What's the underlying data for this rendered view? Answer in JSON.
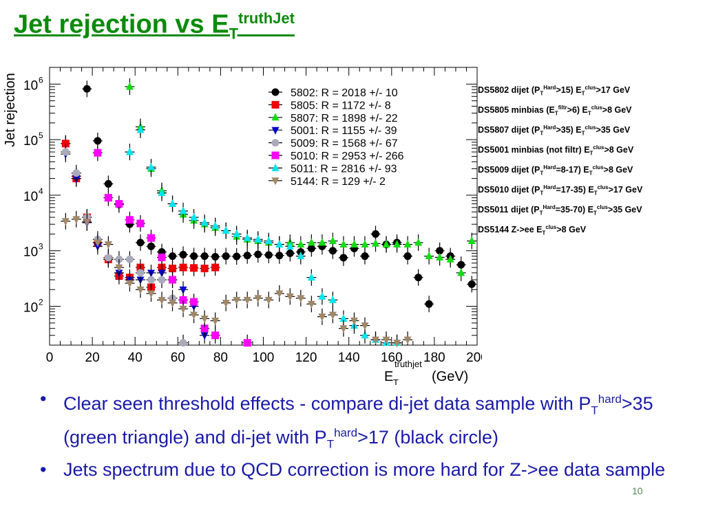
{
  "title": {
    "main": "Jet rejection vs E",
    "sub": "T",
    "sup": "truthJet"
  },
  "notes": [
    [
      "DS5802 dijet (P",
      {
        "sub": "T"
      },
      {
        "sup": "Hard"
      },
      ">15)  E",
      {
        "sub": "T"
      },
      {
        "sup": "clus"
      },
      ">17 GeV"
    ],
    [
      "DS5805 minbias (E",
      {
        "sub": "T"
      },
      {
        "sup": "filtr"
      },
      ">6) E",
      {
        "sub": "T"
      },
      {
        "sup": "clus"
      },
      ">8 GeV"
    ],
    [
      "DS5807 dijet (P",
      {
        "sub": "T"
      },
      {
        "sup": "Hard"
      },
      ">35)  E",
      {
        "sub": "T"
      },
      {
        "sup": "clus"
      },
      ">35 GeV"
    ],
    [
      "DS5001 minbias (not filtr) E",
      {
        "sub": "T"
      },
      {
        "sup": "clus"
      },
      ">8 GeV"
    ],
    [
      "DS5009 dijet (P",
      {
        "sub": "T"
      },
      {
        "sup": "Hard"
      },
      "=8-17) E",
      {
        "sub": "T"
      },
      {
        "sup": "clus"
      },
      ">8 GeV"
    ],
    [
      "DS5010 dijet (P",
      {
        "sub": "T"
      },
      {
        "sup": "Hard"
      },
      "=17-35) E",
      {
        "sub": "T"
      },
      {
        "sup": "clus"
      },
      ">17 GeV"
    ],
    [
      "DS5011 dijet (P",
      {
        "sub": "T"
      },
      {
        "sup": "Hard"
      },
      "=35-70) E",
      {
        "sub": "T"
      },
      {
        "sup": "clus"
      },
      ">35 GeV"
    ],
    [
      "DS5144  Z->ee   E",
      {
        "sub": "T"
      },
      {
        "sup": "clus"
      },
      ">8 GeV"
    ]
  ],
  "bullets": [
    [
      "Clear seen threshold effects - compare di-jet data sample with P",
      {
        "sub": "T"
      },
      {
        "sup": "hard"
      },
      ">35 (green triangle) and di-jet with P",
      {
        "sub": "T"
      },
      {
        "sup": "hard"
      },
      ">17 (black circle)"
    ],
    [
      "Jets spectrum due to QCD correction is more hard for Z->ee data sample"
    ]
  ],
  "page_number": "10",
  "chart_data": {
    "type": "scatter",
    "ylabel": "Jet rejection",
    "xlabel": {
      "main": "E",
      "sub": "T",
      "sup": "truthjet",
      "unit": " (GeV)"
    },
    "xlim": [
      0,
      200
    ],
    "ylim": [
      20,
      2000000
    ],
    "ylog": true,
    "x_ticks": [
      0,
      20,
      40,
      60,
      80,
      100,
      120,
      140,
      160,
      180,
      200
    ],
    "y_ticks": [
      {
        "value": 100,
        "label": "10",
        "exp": "2"
      },
      {
        "value": 1000,
        "label": "10",
        "exp": "3"
      },
      {
        "value": 10000,
        "label": "10",
        "exp": "4"
      },
      {
        "value": 100000,
        "label": "10",
        "exp": "5"
      },
      {
        "value": 1000000,
        "label": "10",
        "exp": "6"
      }
    ],
    "legend_position": "top-right",
    "series": [
      {
        "name": "5802: R = 2018 +/- 10",
        "color": "#000000",
        "marker": "circle",
        "x": [
          7.5,
          12.5,
          17.5,
          22.5,
          27.5,
          32.5,
          37.5,
          42.5,
          47.5,
          52.5,
          57.5,
          62.5,
          67.5,
          72.5,
          77.5,
          82.5,
          87.5,
          92.5,
          97.5,
          102.5,
          107.5,
          112.5,
          117.5,
          122.5,
          127.5,
          132.5,
          137.5,
          142.5,
          147.5,
          152.5,
          157.5,
          162.5,
          167.5,
          172.5,
          177.5,
          182.5,
          187.5,
          192.5,
          197.5
        ],
        "y": [
          85000,
          22000,
          820000,
          95000,
          16000,
          6800,
          3000,
          1400,
          1200,
          950,
          800,
          850,
          800,
          800,
          780,
          800,
          790,
          820,
          860,
          840,
          820,
          900,
          950,
          1100,
          1200,
          1000,
          750,
          1100,
          800,
          2000,
          1300,
          1400,
          800,
          330,
          110,
          1000,
          800,
          560,
          250
        ]
      },
      {
        "name": "5805: R = 1172 +/- 8",
        "color": "#ee0000",
        "marker": "square",
        "x": [
          7.5,
          12.5,
          17.5,
          22.5,
          27.5,
          32.5,
          37.5,
          42.5,
          47.5,
          52.5,
          57.5,
          62.5,
          67.5,
          72.5,
          77.5
        ],
        "y": [
          85000,
          20000,
          4000,
          1400,
          700,
          350,
          330,
          500,
          220,
          500,
          480,
          500,
          490,
          480,
          500
        ]
      },
      {
        "name": "5807: R = 1898 +/- 22",
        "color": "#11dd11",
        "marker": "triangle-up",
        "x": [
          37.5,
          42.5,
          47.5,
          52.5,
          57.5,
          62.5,
          67.5,
          72.5,
          77.5,
          82.5,
          87.5,
          92.5,
          97.5,
          102.5,
          107.5,
          112.5,
          117.5,
          122.5,
          127.5,
          132.5,
          137.5,
          142.5,
          147.5,
          152.5,
          157.5,
          162.5,
          167.5,
          172.5,
          177.5,
          182.5,
          187.5,
          192.5,
          197.5
        ],
        "y": [
          900000,
          170000,
          30000,
          12000,
          7000,
          4500,
          3500,
          3000,
          2600,
          2300,
          1800,
          1600,
          1500,
          1400,
          1300,
          1400,
          1300,
          1400,
          1400,
          1500,
          1300,
          1300,
          1300,
          1350,
          1300,
          1300,
          1300,
          1400,
          800,
          760,
          700,
          400,
          1500
        ]
      },
      {
        "name": "5001: R = 1155 +/- 39",
        "color": "#0000cc",
        "marker": "triangle-down",
        "x": [
          7.5,
          12.5,
          17.5,
          22.5,
          27.5,
          32.5,
          37.5,
          42.5,
          47.5,
          52.5,
          57.5,
          62.5,
          67.5,
          72.5
        ],
        "y": [
          55000,
          20000,
          3200,
          1200,
          700,
          400,
          300,
          300,
          400,
          400,
          300,
          200,
          100,
          30
        ]
      },
      {
        "name": "5009: R = 1568 +/- 67",
        "color": "#aaaabb",
        "marker": "circle",
        "x": [
          7.5,
          12.5,
          17.5,
          22.5,
          27.5,
          32.5,
          37.5,
          42.5,
          47.5,
          52.5,
          57.5,
          62.5
        ],
        "y": [
          60000,
          25000,
          4000,
          1600,
          750,
          700,
          700,
          400,
          300,
          300,
          140,
          22
        ]
      },
      {
        "name": "5010: R = 2953 +/- 266",
        "color": "#ff00ff",
        "marker": "square",
        "x": [
          22.5,
          27.5,
          32.5,
          37.5,
          42.5,
          47.5,
          52.5,
          57.5,
          62.5,
          67.5,
          72.5,
          77.5,
          92.5
        ],
        "y": [
          58000,
          9000,
          7000,
          3600,
          3100,
          1700,
          760,
          300,
          130,
          120,
          40,
          30,
          22
        ]
      },
      {
        "name": "5011: R = 2816 +/- 93",
        "color": "#00e5ee",
        "marker": "triangle-up",
        "x": [
          37.5,
          42.5,
          47.5,
          52.5,
          57.5,
          62.5,
          67.5,
          72.5,
          77.5,
          82.5,
          87.5,
          92.5,
          97.5,
          102.5,
          107.5,
          112.5,
          117.5,
          122.5,
          127.5,
          132.5,
          137.5,
          142.5,
          147.5,
          152.5,
          157.5,
          162.5
        ],
        "y": [
          60000,
          150000,
          32000,
          11000,
          7000,
          5200,
          4000,
          3200,
          2800,
          2300,
          2000,
          1700,
          1600,
          1500,
          1300,
          1200,
          800,
          330,
          150,
          130,
          60,
          45,
          30,
          25,
          22,
          22
        ]
      },
      {
        "name": "5144: R = 129 +/- 2",
        "color": "#a08868",
        "marker": "triangle-down",
        "x": [
          7.5,
          12.5,
          17.5,
          22.5,
          27.5,
          32.5,
          37.5,
          42.5,
          47.5,
          52.5,
          57.5,
          62.5,
          67.5,
          72.5,
          77.5,
          82.5,
          87.5,
          92.5,
          97.5,
          102.5,
          107.5,
          112.5,
          117.5,
          122.5,
          127.5,
          132.5,
          137.5,
          142.5,
          147.5,
          152.5,
          157.5,
          162.5,
          167.5
        ],
        "y": [
          3400,
          3700,
          3300,
          1400,
          1300,
          500,
          260,
          200,
          170,
          130,
          115,
          90,
          70,
          60,
          55,
          115,
          130,
          130,
          140,
          130,
          170,
          150,
          140,
          110,
          65,
          70,
          40,
          55,
          45,
          25,
          25,
          22,
          25
        ]
      }
    ]
  }
}
